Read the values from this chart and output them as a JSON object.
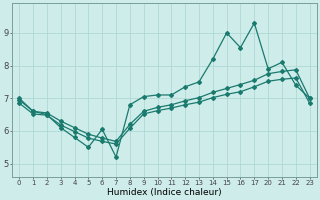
{
  "xlabel": "Humidex (Indice chaleur)",
  "ylabel": "",
  "bg_color": "#ceecea",
  "line_color": "#1a7a6e",
  "grid_color": "#aed8d4",
  "xlabels": [
    "0",
    "1",
    "2",
    "3",
    "4",
    "5",
    "6",
    "7",
    "8",
    "9",
    "10",
    "11",
    "12",
    "13",
    "14",
    "15",
    "16",
    "17",
    "20",
    "21",
    "22",
    "23"
  ],
  "yticks": [
    5,
    6,
    7,
    8,
    9
  ],
  "ylim": [
    4.6,
    9.9
  ],
  "line1_y": [
    7.0,
    6.6,
    6.5,
    6.1,
    5.8,
    5.5,
    6.05,
    5.2,
    6.8,
    7.05,
    7.1,
    7.1,
    7.35,
    7.5,
    8.2,
    9.0,
    8.55,
    9.3,
    7.9,
    8.1,
    7.4,
    7.0
  ],
  "line2_y": [
    6.95,
    6.6,
    6.55,
    6.3,
    6.1,
    5.9,
    5.78,
    5.68,
    6.2,
    6.6,
    6.72,
    6.8,
    6.92,
    7.02,
    7.18,
    7.3,
    7.42,
    7.55,
    7.75,
    7.82,
    7.87,
    7.0
  ],
  "line3_y": [
    6.85,
    6.52,
    6.48,
    6.18,
    5.98,
    5.78,
    5.68,
    5.6,
    6.08,
    6.52,
    6.62,
    6.7,
    6.8,
    6.88,
    7.02,
    7.12,
    7.2,
    7.35,
    7.52,
    7.58,
    7.62,
    6.85
  ]
}
